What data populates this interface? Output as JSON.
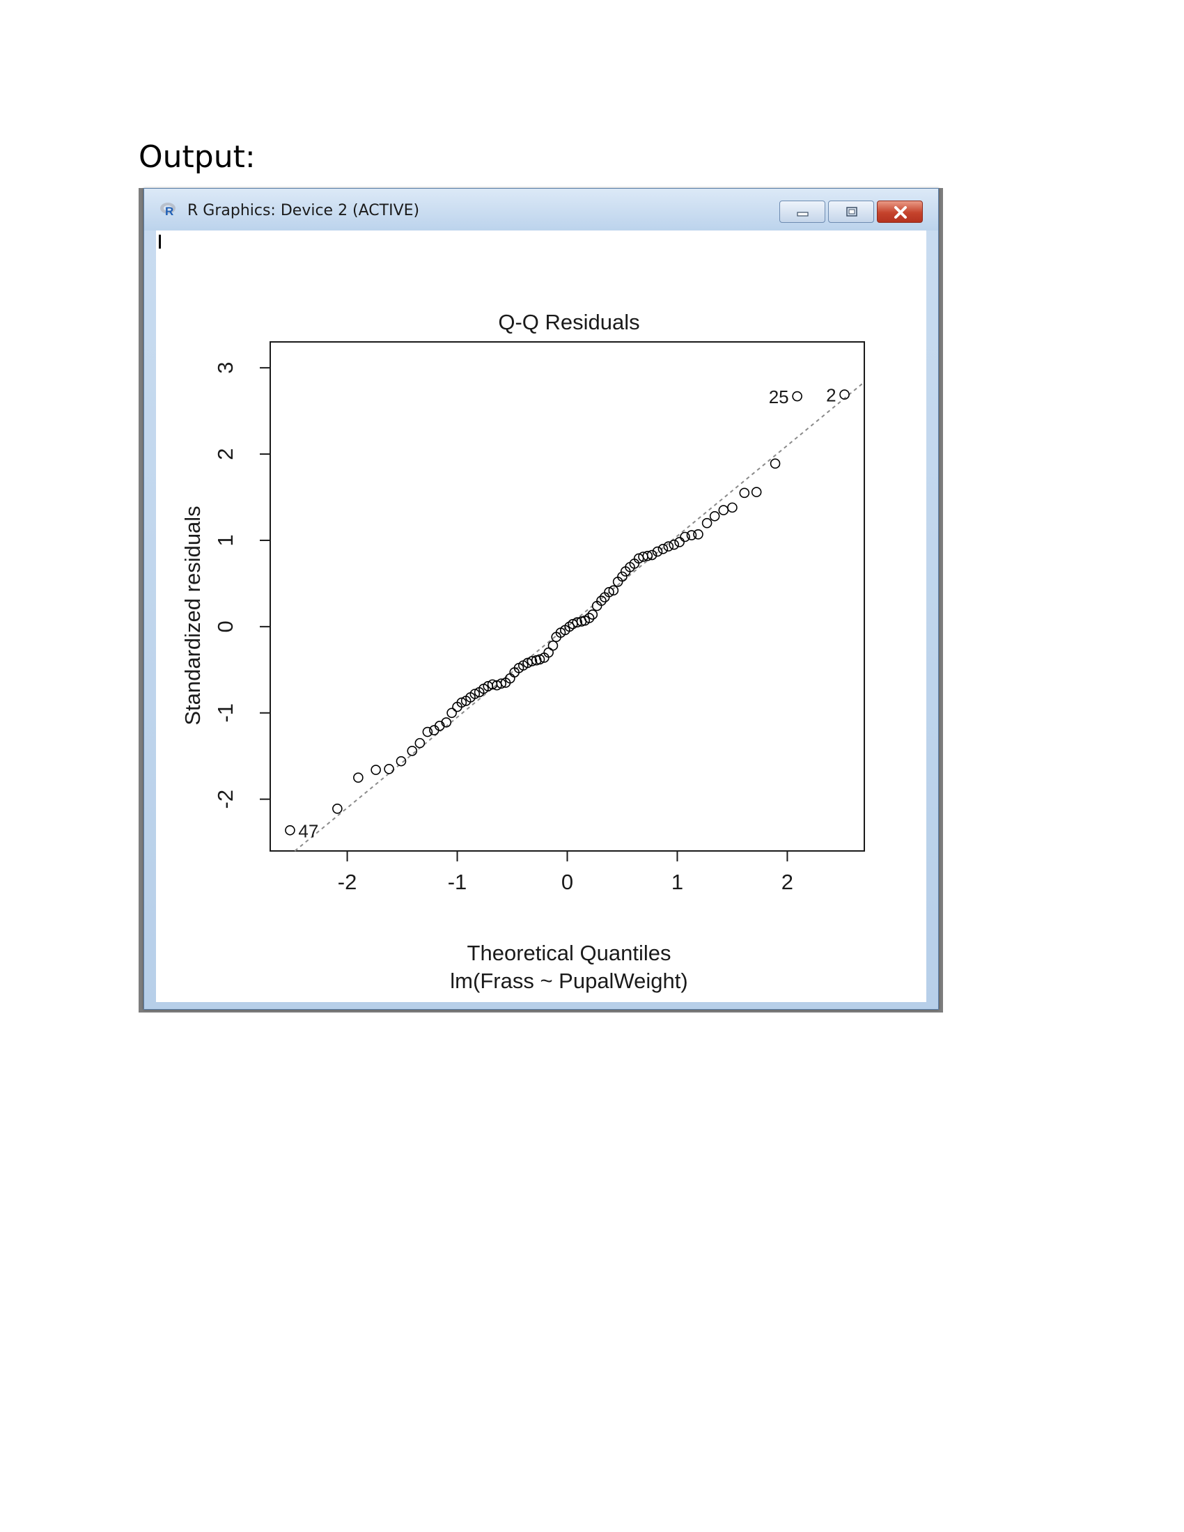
{
  "page": {
    "heading": "Output:"
  },
  "window": {
    "title": "R Graphics: Device 2 (ACTIVE)",
    "app_icon": "r-logo-icon",
    "buttons": [
      "minimize-icon",
      "maximize-icon",
      "close-icon"
    ]
  },
  "colors": {
    "titlebar": "#c9dcf0",
    "close_button": "#c5432c",
    "points": "#000000",
    "reference_line": "#8a8a8a"
  },
  "chart_data": {
    "type": "scatter",
    "title": "Q-Q Residuals",
    "xlabel": "Theoretical Quantiles",
    "subtitle": "lm(Frass ~ PupalWeight)",
    "ylabel": "Standardized residuals",
    "xlim": [
      -2.7,
      2.7
    ],
    "ylim": [
      -2.6,
      3.3
    ],
    "xticks": [
      -2,
      -1,
      0,
      1,
      2
    ],
    "yticks": [
      -2,
      -1,
      0,
      1,
      2,
      3
    ],
    "grid": false,
    "reference_line": {
      "style": "dashed",
      "slope": 1.05,
      "intercept": 0.0
    },
    "labeled_points": [
      {
        "label": "47",
        "x": -2.52,
        "y": -2.36
      },
      {
        "label": "25",
        "x": 2.09,
        "y": 2.67
      },
      {
        "label": "2",
        "x": 2.52,
        "y": 2.69
      }
    ],
    "points": [
      [
        -2.52,
        -2.36
      ],
      [
        -2.09,
        -2.11
      ],
      [
        -1.9,
        -1.75
      ],
      [
        -1.74,
        -1.66
      ],
      [
        -1.62,
        -1.65
      ],
      [
        -1.51,
        -1.56
      ],
      [
        -1.41,
        -1.44
      ],
      [
        -1.34,
        -1.35
      ],
      [
        -1.27,
        -1.22
      ],
      [
        -1.21,
        -1.2
      ],
      [
        -1.16,
        -1.15
      ],
      [
        -1.1,
        -1.11
      ],
      [
        -1.05,
        -1.0
      ],
      [
        -1.0,
        -0.93
      ],
      [
        -0.96,
        -0.88
      ],
      [
        -0.92,
        -0.86
      ],
      [
        -0.88,
        -0.82
      ],
      [
        -0.84,
        -0.78
      ],
      [
        -0.8,
        -0.76
      ],
      [
        -0.76,
        -0.72
      ],
      [
        -0.72,
        -0.69
      ],
      [
        -0.68,
        -0.67
      ],
      [
        -0.64,
        -0.68
      ],
      [
        -0.6,
        -0.66
      ],
      [
        -0.56,
        -0.65
      ],
      [
        -0.52,
        -0.6
      ],
      [
        -0.48,
        -0.53
      ],
      [
        -0.44,
        -0.48
      ],
      [
        -0.4,
        -0.45
      ],
      [
        -0.36,
        -0.42
      ],
      [
        -0.32,
        -0.4
      ],
      [
        -0.28,
        -0.39
      ],
      [
        -0.25,
        -0.38
      ],
      [
        -0.21,
        -0.36
      ],
      [
        -0.17,
        -0.3
      ],
      [
        -0.13,
        -0.22
      ],
      [
        -0.1,
        -0.12
      ],
      [
        -0.06,
        -0.07
      ],
      [
        -0.02,
        -0.04
      ],
      [
        0.02,
        0.0
      ],
      [
        0.05,
        0.03
      ],
      [
        0.09,
        0.05
      ],
      [
        0.13,
        0.06
      ],
      [
        0.16,
        0.07
      ],
      [
        0.2,
        0.1
      ],
      [
        0.23,
        0.14
      ],
      [
        0.27,
        0.24
      ],
      [
        0.31,
        0.3
      ],
      [
        0.34,
        0.34
      ],
      [
        0.38,
        0.4
      ],
      [
        0.42,
        0.42
      ],
      [
        0.46,
        0.52
      ],
      [
        0.5,
        0.58
      ],
      [
        0.53,
        0.64
      ],
      [
        0.57,
        0.69
      ],
      [
        0.61,
        0.73
      ],
      [
        0.65,
        0.79
      ],
      [
        0.69,
        0.81
      ],
      [
        0.73,
        0.82
      ],
      [
        0.77,
        0.83
      ],
      [
        0.82,
        0.87
      ],
      [
        0.87,
        0.9
      ],
      [
        0.92,
        0.93
      ],
      [
        0.97,
        0.95
      ],
      [
        1.02,
        0.98
      ],
      [
        1.07,
        1.04
      ],
      [
        1.13,
        1.06
      ],
      [
        1.19,
        1.07
      ],
      [
        1.27,
        1.2
      ],
      [
        1.34,
        1.28
      ],
      [
        1.42,
        1.35
      ],
      [
        1.5,
        1.38
      ],
      [
        1.61,
        1.55
      ],
      [
        1.72,
        1.56
      ],
      [
        1.89,
        1.89
      ],
      [
        2.09,
        2.67
      ],
      [
        2.52,
        2.69
      ]
    ]
  }
}
